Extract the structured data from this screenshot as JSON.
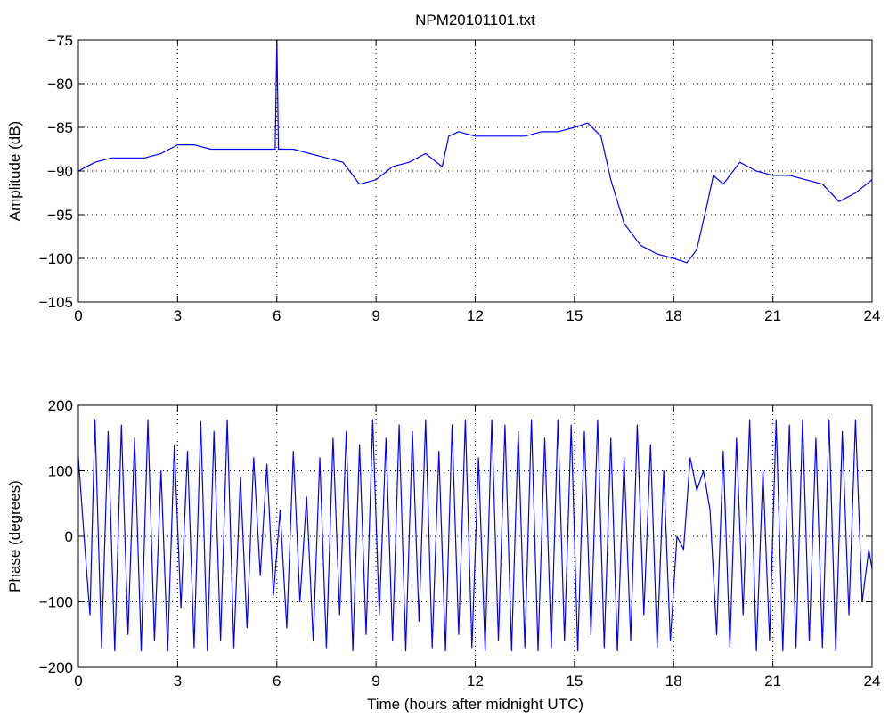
{
  "chart_data": [
    {
      "type": "line",
      "title": "NPM20101101.txt",
      "xlabel": "",
      "ylabel": "Amplitude (dB)",
      "xlim": [
        0,
        24
      ],
      "ylim": [
        -105,
        -75
      ],
      "xticks": [
        0,
        3,
        6,
        9,
        12,
        15,
        18,
        21,
        24
      ],
      "yticks": [
        -105,
        -100,
        -95,
        -90,
        -85,
        -80,
        -75
      ],
      "grid": "dotted",
      "color": "#0000ff",
      "series": [
        {
          "x": [
            0,
            0.5,
            1,
            1.5,
            2,
            2.5,
            3,
            3.5,
            4,
            4.5,
            5,
            5.5,
            5.95,
            6.0,
            6.05,
            6.5,
            7,
            7.5,
            8,
            8.5,
            9,
            9.5,
            10,
            10.5,
            11,
            11.2,
            11.5,
            12,
            12.5,
            13,
            13.5,
            14,
            14.5,
            15,
            15.4,
            15.8,
            16.1,
            16.5,
            17,
            17.5,
            18,
            18.4,
            18.7,
            19,
            19.2,
            19.5,
            20,
            20.5,
            21,
            21.5,
            22,
            22.5,
            23,
            23.5,
            24
          ],
          "y": [
            -90,
            -89,
            -88.5,
            -88.5,
            -88.5,
            -88,
            -87,
            -87,
            -87.5,
            -87.5,
            -87.5,
            -87.5,
            -87.5,
            -75,
            -87.5,
            -87.5,
            -88,
            -88.5,
            -89,
            -91.5,
            -91,
            -89.5,
            -89,
            -88,
            -89.5,
            -86,
            -85.5,
            -86,
            -86,
            -86,
            -86,
            -85.5,
            -85.5,
            -85,
            -84.5,
            -86,
            -91,
            -96,
            -98.5,
            -99.5,
            -100,
            -100.5,
            -99,
            -94,
            -90.5,
            -91.5,
            -89,
            -90,
            -90.5,
            -90.5,
            -91,
            -91.5,
            -93.5,
            -92.5,
            -91
          ]
        }
      ]
    },
    {
      "type": "line",
      "title": "",
      "xlabel": "Time (hours after midnight UTC)",
      "ylabel": "Phase (degrees)",
      "xlim": [
        0,
        24
      ],
      "ylim": [
        -200,
        200
      ],
      "xticks": [
        0,
        3,
        6,
        9,
        12,
        15,
        18,
        21,
        24
      ],
      "yticks": [
        -200,
        -100,
        0,
        100,
        200
      ],
      "grid": "dotted",
      "color": "#0000ff",
      "series": [
        {
          "x": [
            0,
            0.2,
            0.35,
            0.5,
            0.7,
            0.9,
            1.1,
            1.3,
            1.5,
            1.7,
            1.9,
            2.1,
            2.3,
            2.5,
            2.7,
            2.9,
            3.1,
            3.3,
            3.5,
            3.7,
            3.9,
            4.1,
            4.3,
            4.5,
            4.7,
            4.9,
            5.1,
            5.3,
            5.5,
            5.7,
            5.9,
            6.1,
            6.3,
            6.5,
            6.7,
            6.9,
            7.1,
            7.3,
            7.5,
            7.7,
            7.9,
            8.1,
            8.3,
            8.5,
            8.7,
            8.9,
            9.1,
            9.3,
            9.5,
            9.7,
            9.9,
            10.1,
            10.3,
            10.5,
            10.7,
            10.9,
            11.1,
            11.3,
            11.5,
            11.7,
            11.9,
            12.1,
            12.3,
            12.5,
            12.7,
            12.9,
            13.1,
            13.3,
            13.5,
            13.7,
            13.9,
            14.1,
            14.3,
            14.5,
            14.7,
            14.9,
            15.1,
            15.3,
            15.5,
            15.7,
            15.9,
            16.1,
            16.3,
            16.5,
            16.7,
            16.9,
            17.1,
            17.3,
            17.5,
            17.7,
            17.9,
            18.1,
            18.3,
            18.5,
            18.7,
            18.9,
            19.1,
            19.3,
            19.5,
            19.7,
            19.9,
            20.1,
            20.3,
            20.5,
            20.7,
            20.9,
            21.1,
            21.3,
            21.5,
            21.7,
            21.9,
            22.1,
            22.3,
            22.5,
            22.7,
            22.9,
            23.1,
            23.3,
            23.5,
            23.7,
            23.9,
            24
          ],
          "y": [
            120,
            -20,
            -120,
            178,
            -170,
            160,
            -175,
            170,
            -150,
            150,
            -175,
            178,
            -160,
            100,
            -175,
            140,
            -110,
            130,
            -170,
            175,
            -175,
            160,
            -160,
            178,
            -170,
            90,
            -140,
            120,
            -60,
            110,
            -90,
            40,
            -140,
            130,
            -100,
            60,
            -160,
            120,
            -170,
            150,
            -120,
            160,
            -175,
            140,
            -150,
            178,
            -120,
            150,
            -160,
            170,
            -175,
            160,
            -130,
            178,
            -170,
            130,
            -175,
            170,
            -150,
            178,
            -170,
            120,
            -175,
            178,
            -160,
            170,
            -175,
            160,
            -170,
            178,
            -175,
            150,
            -170,
            178,
            -160,
            170,
            -175,
            160,
            -150,
            178,
            -170,
            150,
            -175,
            120,
            -160,
            170,
            -120,
            140,
            -170,
            100,
            -160,
            0,
            -20,
            120,
            70,
            100,
            40,
            -150,
            130,
            -170,
            150,
            -120,
            178,
            -175,
            100,
            -160,
            178,
            -175,
            170,
            -170,
            178,
            -160,
            150,
            -170,
            178,
            -175,
            160,
            -120,
            178,
            -100,
            -20,
            -50
          ]
        }
      ]
    }
  ]
}
